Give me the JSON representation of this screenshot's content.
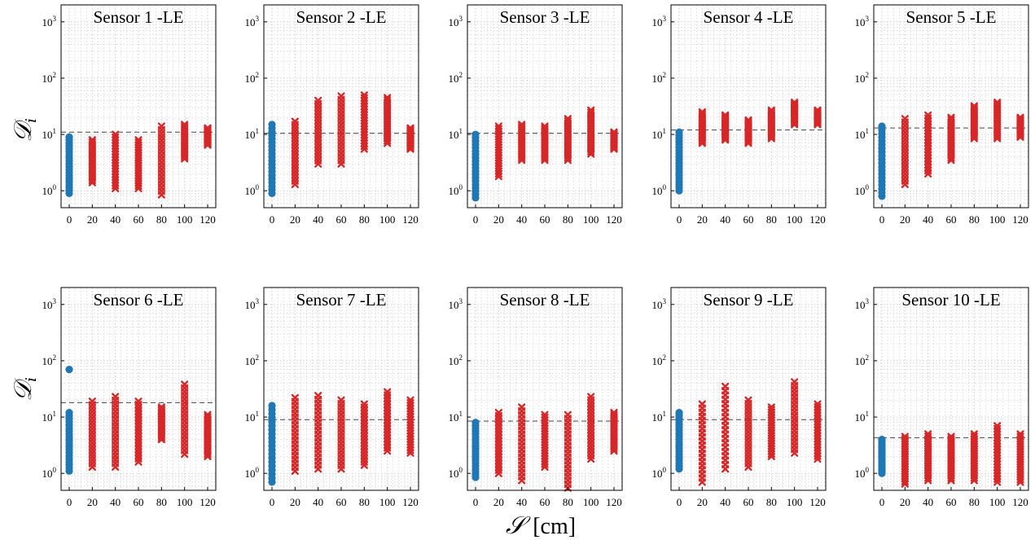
{
  "figure": {
    "ylabel": {
      "main": "𝒟",
      "sub": "i"
    },
    "xlabel": {
      "main": "𝒮",
      "unit": "[cm]"
    }
  },
  "style": {
    "baseline_color": "#1f77b4",
    "damage_color": "#d62728",
    "threshold_color": "#444444",
    "grid_color": "#c8c8c8",
    "baseline_marker": "circle",
    "damage_marker": "x"
  },
  "axes": {
    "x_ticks": [
      0,
      20,
      40,
      60,
      80,
      100,
      120
    ],
    "x_tick_labels": [
      "0",
      "20",
      "40",
      "60",
      "80",
      "100",
      "120"
    ],
    "y_scale": "log",
    "ylim": [
      0.5,
      2000
    ],
    "y_ticks": [
      1,
      10,
      100,
      1000
    ],
    "y_tick_labels": [
      {
        "base": "10",
        "exp": "0"
      },
      {
        "base": "10",
        "exp": "1"
      },
      {
        "base": "10",
        "exp": "2"
      },
      {
        "base": "10",
        "exp": "3"
      }
    ],
    "grid": "minor dotted"
  },
  "chart_data": [
    {
      "type": "scatter",
      "title": "Sensor 1 -LE",
      "threshold": 11,
      "series": [
        {
          "values": {
            "0": [
              0.9,
              9
            ],
            "20": [
              1.4,
              8
            ],
            "40": [
              1.1,
              10
            ],
            "60": [
              1.1,
              8
            ],
            "80": [
              0.85,
              14
            ],
            "100": [
              3.7,
              15
            ],
            "120": [
              6.5,
              13
            ]
          }
        }
      ]
    },
    {
      "type": "scatter",
      "title": "Sensor 2 -LE",
      "threshold": 10.5,
      "series": [
        {
          "values": {
            "0": [
              0.9,
              15
            ],
            "20": [
              1.3,
              17
            ],
            "40": [
              3,
              40
            ],
            "60": [
              3,
              48
            ],
            "80": [
              5.5,
              50
            ],
            "100": [
              7,
              45
            ],
            "120": [
              5.5,
              13
            ]
          }
        }
      ]
    },
    {
      "type": "scatter",
      "title": "Sensor 3 -LE",
      "threshold": 10.5,
      "series": [
        {
          "values": {
            "0": [
              0.75,
              10
            ],
            "20": [
              1.8,
              14
            ],
            "40": [
              3.5,
              15
            ],
            "60": [
              3.5,
              14
            ],
            "80": [
              3.5,
              19
            ],
            "100": [
              4.5,
              27
            ],
            "120": [
              5.5,
              11
            ]
          }
        }
      ]
    },
    {
      "type": "scatter",
      "title": "Sensor 4 -LE",
      "threshold": 12,
      "series": [
        {
          "values": {
            "0": [
              1,
              11
            ],
            "20": [
              7,
              25
            ],
            "40": [
              8,
              22
            ],
            "60": [
              7,
              18
            ],
            "80": [
              8.5,
              27
            ],
            "100": [
              15,
              37
            ],
            "120": [
              15,
              27
            ]
          }
        }
      ]
    },
    {
      "type": "scatter",
      "title": "Sensor 5 -LE",
      "threshold": 13,
      "series": [
        {
          "values": {
            "0": [
              0.8,
              14
            ],
            "20": [
              1.3,
              19
            ],
            "40": [
              2,
              22
            ],
            "60": [
              3.5,
              20
            ],
            "80": [
              8.5,
              32
            ],
            "100": [
              8.5,
              37
            ],
            "120": [
              9,
              20
            ]
          }
        }
      ]
    },
    {
      "type": "scatter",
      "title": "Sensor 6 -LE",
      "threshold": 18,
      "series": [
        {
          "values": {
            "0": [
              1.1,
              12
            ],
            "20": [
              1.3,
              19
            ],
            "40": [
              1.3,
              23
            ],
            "60": [
              1.6,
              19
            ],
            "80": [
              4,
              15
            ],
            "100": [
              2.2,
              38
            ],
            "120": [
              2,
              11
            ]
          }
        }
      ],
      "outliers": {
        "0": [
          70
        ]
      }
    },
    {
      "type": "scatter",
      "title": "Sensor 7 -LE",
      "threshold": 9,
      "series": [
        {
          "values": {
            "0": [
              0.7,
              16
            ],
            "20": [
              1.1,
              22
            ],
            "40": [
              1.2,
              24
            ],
            "60": [
              1.2,
              20
            ],
            "80": [
              1.4,
              17
            ],
            "100": [
              2.5,
              28
            ],
            "120": [
              2.3,
              20
            ]
          }
        }
      ]
    },
    {
      "type": "scatter",
      "title": "Sensor 8 -LE",
      "threshold": 8.5,
      "series": [
        {
          "values": {
            "0": [
              0.85,
              8
            ],
            "20": [
              1,
              12
            ],
            "40": [
              0.75,
              15
            ],
            "60": [
              1.3,
              11
            ],
            "80": [
              0.55,
              11
            ],
            "100": [
              1.8,
              23
            ],
            "120": [
              2.5,
              12
            ]
          }
        }
      ]
    },
    {
      "type": "scatter",
      "title": "Sensor 9 -LE",
      "threshold": 9,
      "series": [
        {
          "values": {
            "0": [
              1.2,
              12
            ],
            "20": [
              0.7,
              17
            ],
            "40": [
              1.2,
              35
            ],
            "60": [
              1.3,
              20
            ],
            "80": [
              2,
              15
            ],
            "100": [
              2.3,
              42
            ],
            "120": [
              1.8,
              17
            ]
          }
        }
      ]
    },
    {
      "type": "scatter",
      "title": "Sensor 10 -LE",
      "threshold": 4.3,
      "series": [
        {
          "values": {
            "0": [
              1,
              4
            ],
            "20": [
              0.65,
              4.5
            ],
            "40": [
              0.75,
              5
            ],
            "60": [
              0.75,
              4.5
            ],
            "80": [
              0.75,
              5
            ],
            "100": [
              0.7,
              7
            ],
            "120": [
              0.7,
              5
            ]
          }
        }
      ]
    }
  ]
}
